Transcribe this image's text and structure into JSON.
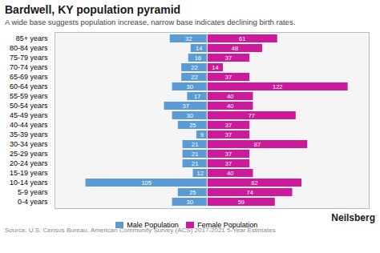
{
  "chart_data": {
    "type": "bar",
    "orientation": "horizontal",
    "title": "Bardwell, KY population pyramid",
    "subtitle": "A wide base suggests population increase, narrow base indicates declining birth rates.",
    "source": "Source: U.S. Census Bureau, American Community Survey (ACS) 2017-2021 5-Year Estimates",
    "branding": "Neilsberg",
    "categories": [
      "0-4 years",
      "5-9 years",
      "10-14 years",
      "15-19 years",
      "20-24 years",
      "25-29 years",
      "30-34 years",
      "35-39 years",
      "40-44 years",
      "45-49 years",
      "50-54 years",
      "55-59 years",
      "60-64 years",
      "65-69 years",
      "70-74 years",
      "75-79 years",
      "80-84 years",
      "85+ years"
    ],
    "series": [
      {
        "name": "Male Population",
        "color": "#5b9bd5",
        "values": [
          30,
          25,
          105,
          12,
          21,
          21,
          21,
          9,
          25,
          30,
          37,
          17,
          30,
          22,
          22,
          16,
          14,
          32
        ]
      },
      {
        "name": "Female Population",
        "color": "#cc1a9a",
        "values": [
          59,
          74,
          82,
          40,
          37,
          37,
          87,
          37,
          37,
          77,
          40,
          40,
          122,
          37,
          14,
          37,
          48,
          61
        ]
      }
    ],
    "xlim": [
      -131.76,
      140.3
    ],
    "tick_labels": "y",
    "data_labels": true,
    "legend": "bottom"
  }
}
